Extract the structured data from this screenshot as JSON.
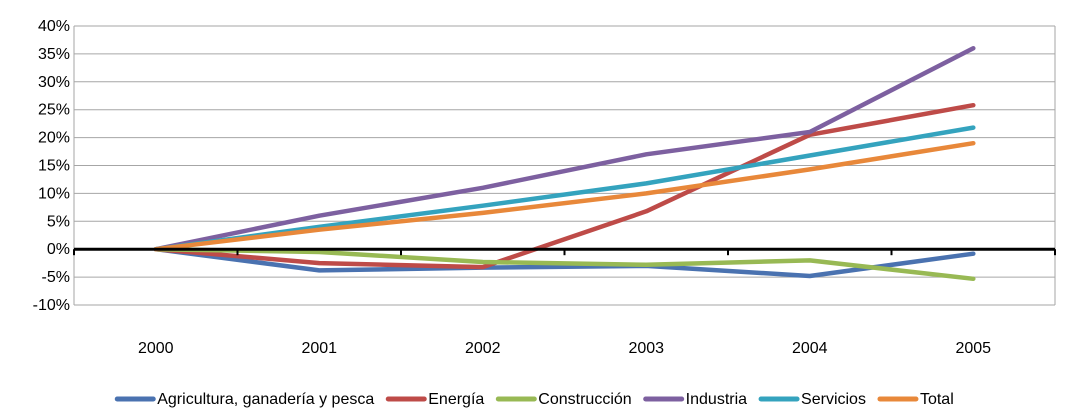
{
  "chart_data": {
    "type": "line",
    "categories": [
      "2000",
      "2001",
      "2002",
      "2003",
      "2004",
      "2005"
    ],
    "ylim": [
      -10,
      40
    ],
    "yticks": [
      -10,
      -5,
      0,
      5,
      10,
      15,
      20,
      25,
      30,
      35,
      40
    ],
    "ytick_labels": [
      "-10%",
      "-5%",
      "0%",
      "5%",
      "10%",
      "15%",
      "20%",
      "25%",
      "30%",
      "35%",
      "40%"
    ],
    "grid": true,
    "legend_position": "bottom",
    "series": [
      {
        "name": "Agricultura, ganadería y pesca",
        "color": "#4a72b0",
        "values": [
          0,
          -3.8,
          -3.3,
          -3.0,
          -4.8,
          -0.8
        ]
      },
      {
        "name": "Energía",
        "color": "#be4b48",
        "values": [
          0,
          -2.5,
          -3.2,
          6.8,
          20.5,
          25.8
        ]
      },
      {
        "name": "Construcción",
        "color": "#98b954",
        "values": [
          0,
          -0.5,
          -2.3,
          -2.8,
          -2.0,
          -5.3
        ]
      },
      {
        "name": "Industria",
        "color": "#7d60a0",
        "values": [
          0,
          6.0,
          11.0,
          17.0,
          21.0,
          36.0
        ]
      },
      {
        "name": "Servicios",
        "color": "#34a3be",
        "values": [
          0,
          4.0,
          7.8,
          11.8,
          16.8,
          21.8
        ]
      },
      {
        "name": "Total",
        "color": "#e8883a",
        "values": [
          0,
          3.5,
          6.5,
          10.0,
          14.3,
          19.0
        ]
      }
    ]
  }
}
